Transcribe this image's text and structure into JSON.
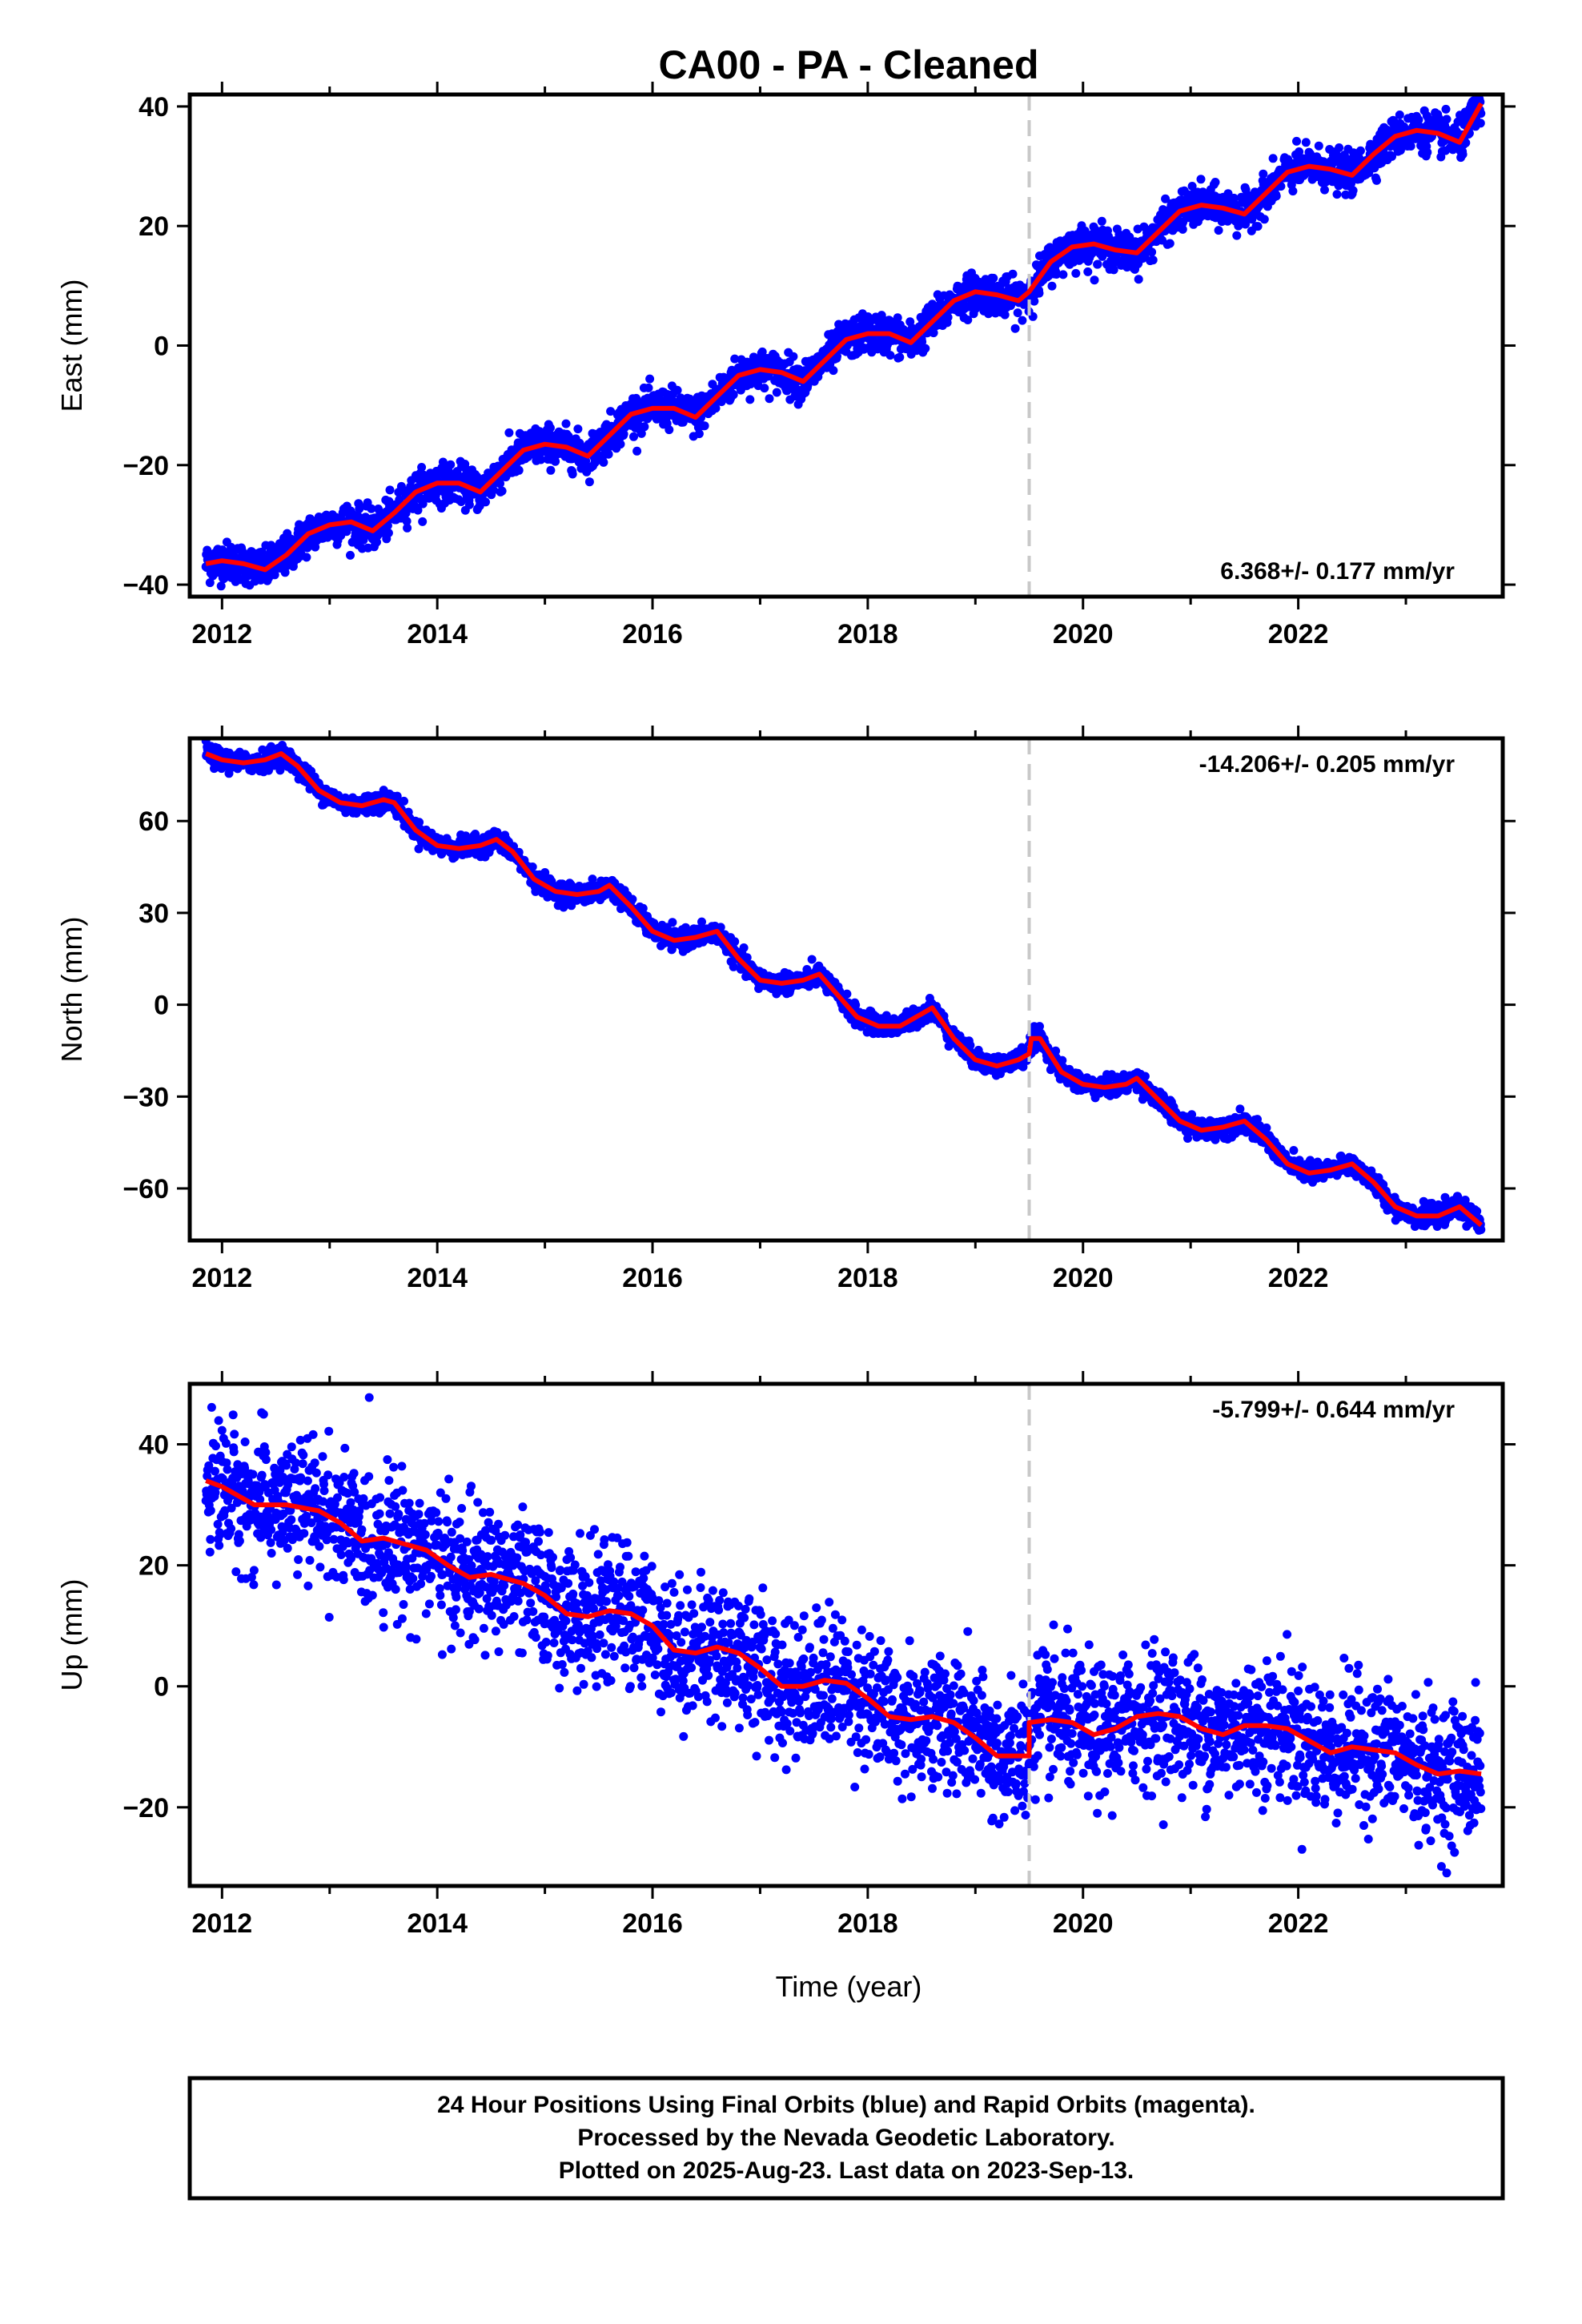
{
  "title": "CA00  - PA - Cleaned",
  "colors": {
    "final_orbits": "#0000ff",
    "model": "#ff0000",
    "offset_line": "#c8c8c8",
    "frame": "#000000"
  },
  "xlabel": "Time (year)",
  "footer": {
    "line1": "24 Hour Positions Using Final Orbits (blue) and Rapid Orbits (magenta).",
    "line2": "Processed by the Nevada Geodetic Laboratory.",
    "line3": "Plotted on 2025-Aug-23. Last data on 2023-Sep-13."
  },
  "chart_data": [
    {
      "type": "scatter",
      "component": "east",
      "ylabel": "East (mm)",
      "rate_label": "6.368+/- 0.177 mm/yr",
      "xlim": [
        2011.7,
        2023.9
      ],
      "ylim": [
        -42,
        42
      ],
      "xticks": [
        2012,
        2014,
        2016,
        2018,
        2020,
        2022
      ],
      "yticks": [
        -40,
        -20,
        0,
        20,
        40
      ],
      "offset_epoch": 2019.5,
      "data_start": 2011.85,
      "data_end": 2023.7,
      "series": [
        {
          "name": "model",
          "points": [
            [
              2011.85,
              -36.5
            ],
            [
              2012.0,
              -36
            ],
            [
              2012.2,
              -36.5
            ],
            [
              2012.4,
              -37.5
            ],
            [
              2012.6,
              -35
            ],
            [
              2012.8,
              -31.5
            ],
            [
              2013.0,
              -30
            ],
            [
              2013.2,
              -29.5
            ],
            [
              2013.4,
              -31
            ],
            [
              2013.6,
              -28
            ],
            [
              2013.8,
              -24.5
            ],
            [
              2014.0,
              -23
            ],
            [
              2014.2,
              -23
            ],
            [
              2014.4,
              -24.5
            ],
            [
              2014.6,
              -21
            ],
            [
              2014.8,
              -17.5
            ],
            [
              2015.0,
              -16.5
            ],
            [
              2015.2,
              -17
            ],
            [
              2015.4,
              -18.5
            ],
            [
              2015.6,
              -15
            ],
            [
              2015.8,
              -11.5
            ],
            [
              2016.0,
              -10.5
            ],
            [
              2016.2,
              -10.5
            ],
            [
              2016.4,
              -12
            ],
            [
              2016.6,
              -8.5
            ],
            [
              2016.8,
              -5
            ],
            [
              2017.0,
              -4
            ],
            [
              2017.2,
              -4.5
            ],
            [
              2017.4,
              -6
            ],
            [
              2017.6,
              -2.5
            ],
            [
              2017.8,
              1
            ],
            [
              2018.0,
              2
            ],
            [
              2018.2,
              2
            ],
            [
              2018.4,
              0.5
            ],
            [
              2018.6,
              4
            ],
            [
              2018.8,
              7.5
            ],
            [
              2019.0,
              9
            ],
            [
              2019.2,
              8.5
            ],
            [
              2019.4,
              7.5
            ],
            [
              2019.5,
              9
            ],
            [
              2019.7,
              14
            ],
            [
              2019.9,
              16.5
            ],
            [
              2020.1,
              17
            ],
            [
              2020.3,
              16
            ],
            [
              2020.5,
              15.5
            ],
            [
              2020.7,
              19
            ],
            [
              2020.9,
              22.5
            ],
            [
              2021.1,
              23.5
            ],
            [
              2021.3,
              23
            ],
            [
              2021.5,
              22
            ],
            [
              2021.7,
              25.5
            ],
            [
              2021.9,
              29
            ],
            [
              2022.1,
              30
            ],
            [
              2022.3,
              29.5
            ],
            [
              2022.5,
              28.5
            ],
            [
              2022.7,
              32
            ],
            [
              2022.9,
              35
            ],
            [
              2023.1,
              36
            ],
            [
              2023.3,
              35.5
            ],
            [
              2023.5,
              34
            ],
            [
              2023.7,
              40.5
            ]
          ]
        }
      ]
    },
    {
      "type": "scatter",
      "component": "north",
      "ylabel": "North (mm)",
      "rate_label": "-14.206+/- 0.205 mm/yr",
      "xlim": [
        2011.7,
        2023.9
      ],
      "ylim": [
        -77,
        87
      ],
      "xticks": [
        2012,
        2014,
        2016,
        2018,
        2020,
        2022
      ],
      "yticks": [
        -60,
        -30,
        0,
        30,
        60
      ],
      "offset_epoch": 2019.5,
      "data_start": 2011.85,
      "data_end": 2023.7,
      "series": [
        {
          "name": "model",
          "points": [
            [
              2011.85,
              82
            ],
            [
              2012.0,
              80
            ],
            [
              2012.2,
              79
            ],
            [
              2012.4,
              80
            ],
            [
              2012.55,
              82
            ],
            [
              2012.7,
              78
            ],
            [
              2012.9,
              70
            ],
            [
              2013.1,
              66
            ],
            [
              2013.3,
              65
            ],
            [
              2013.5,
              67
            ],
            [
              2013.6,
              66
            ],
            [
              2013.8,
              57
            ],
            [
              2014.0,
              52
            ],
            [
              2014.2,
              51
            ],
            [
              2014.4,
              52
            ],
            [
              2014.55,
              54
            ],
            [
              2014.7,
              50
            ],
            [
              2014.9,
              41
            ],
            [
              2015.1,
              37
            ],
            [
              2015.3,
              36
            ],
            [
              2015.5,
              37
            ],
            [
              2015.6,
              39
            ],
            [
              2015.8,
              32
            ],
            [
              2016.0,
              24
            ],
            [
              2016.2,
              21
            ],
            [
              2016.4,
              22
            ],
            [
              2016.6,
              24
            ],
            [
              2016.8,
              15
            ],
            [
              2017.0,
              8
            ],
            [
              2017.2,
              7
            ],
            [
              2017.4,
              8
            ],
            [
              2017.55,
              10
            ],
            [
              2017.7,
              4
            ],
            [
              2017.9,
              -4
            ],
            [
              2018.1,
              -7
            ],
            [
              2018.3,
              -7
            ],
            [
              2018.5,
              -3
            ],
            [
              2018.6,
              -1
            ],
            [
              2018.8,
              -11
            ],
            [
              2019.0,
              -18
            ],
            [
              2019.2,
              -20
            ],
            [
              2019.4,
              -18
            ],
            [
              2019.5,
              -16
            ],
            [
              2019.52,
              -11
            ],
            [
              2019.6,
              -11
            ],
            [
              2019.8,
              -22
            ],
            [
              2020.0,
              -26
            ],
            [
              2020.2,
              -27
            ],
            [
              2020.4,
              -26
            ],
            [
              2020.5,
              -24
            ],
            [
              2020.7,
              -31
            ],
            [
              2020.9,
              -38
            ],
            [
              2021.1,
              -41
            ],
            [
              2021.3,
              -40
            ],
            [
              2021.5,
              -38
            ],
            [
              2021.7,
              -44
            ],
            [
              2021.9,
              -52
            ],
            [
              2022.1,
              -55
            ],
            [
              2022.3,
              -54
            ],
            [
              2022.5,
              -52
            ],
            [
              2022.7,
              -58
            ],
            [
              2022.9,
              -66
            ],
            [
              2023.1,
              -69
            ],
            [
              2023.3,
              -69
            ],
            [
              2023.5,
              -66
            ],
            [
              2023.7,
              -72
            ]
          ]
        }
      ]
    },
    {
      "type": "scatter",
      "component": "up",
      "ylabel": "Up (mm)",
      "rate_label": "-5.799+/- 0.644 mm/yr",
      "xlim": [
        2011.7,
        2023.9
      ],
      "ylim": [
        -33,
        50
      ],
      "xticks": [
        2012,
        2014,
        2016,
        2018,
        2020,
        2022
      ],
      "yticks": [
        -20,
        0,
        20,
        40
      ],
      "offset_epoch": 2019.5,
      "data_start": 2011.85,
      "data_end": 2023.7,
      "series": [
        {
          "name": "model",
          "points": [
            [
              2011.85,
              34
            ],
            [
              2012.0,
              33
            ],
            [
              2012.3,
              30
            ],
            [
              2012.6,
              30
            ],
            [
              2012.9,
              29
            ],
            [
              2013.1,
              27
            ],
            [
              2013.3,
              24
            ],
            [
              2013.5,
              24.5
            ],
            [
              2013.7,
              23.5
            ],
            [
              2013.9,
              22.5
            ],
            [
              2014.1,
              20
            ],
            [
              2014.3,
              18
            ],
            [
              2014.5,
              18.5
            ],
            [
              2014.8,
              17
            ],
            [
              2015.0,
              15
            ],
            [
              2015.2,
              12
            ],
            [
              2015.4,
              11.5
            ],
            [
              2015.6,
              12.5
            ],
            [
              2015.8,
              12
            ],
            [
              2016.0,
              10
            ],
            [
              2016.2,
              6
            ],
            [
              2016.4,
              5.5
            ],
            [
              2016.6,
              6.5
            ],
            [
              2016.8,
              5.5
            ],
            [
              2017.0,
              3
            ],
            [
              2017.2,
              0
            ],
            [
              2017.4,
              0
            ],
            [
              2017.6,
              1
            ],
            [
              2017.8,
              0.5
            ],
            [
              2018.0,
              -2
            ],
            [
              2018.2,
              -5
            ],
            [
              2018.4,
              -5.5
            ],
            [
              2018.6,
              -5
            ],
            [
              2018.8,
              -6
            ],
            [
              2019.0,
              -8.5
            ],
            [
              2019.2,
              -11.5
            ],
            [
              2019.4,
              -11.5
            ],
            [
              2019.5,
              -11.5
            ],
            [
              2019.5,
              -6
            ],
            [
              2019.7,
              -5.5
            ],
            [
              2019.9,
              -6
            ],
            [
              2020.1,
              -8
            ],
            [
              2020.3,
              -7
            ],
            [
              2020.5,
              -5
            ],
            [
              2020.7,
              -4.5
            ],
            [
              2020.9,
              -5
            ],
            [
              2021.1,
              -7
            ],
            [
              2021.3,
              -8
            ],
            [
              2021.5,
              -6.5
            ],
            [
              2021.7,
              -6.5
            ],
            [
              2021.9,
              -7
            ],
            [
              2022.1,
              -9
            ],
            [
              2022.3,
              -11
            ],
            [
              2022.5,
              -10
            ],
            [
              2022.7,
              -10.5
            ],
            [
              2022.9,
              -11
            ],
            [
              2023.1,
              -13
            ],
            [
              2023.3,
              -14.5
            ],
            [
              2023.5,
              -14
            ],
            [
              2023.7,
              -14.5
            ]
          ]
        }
      ]
    }
  ]
}
